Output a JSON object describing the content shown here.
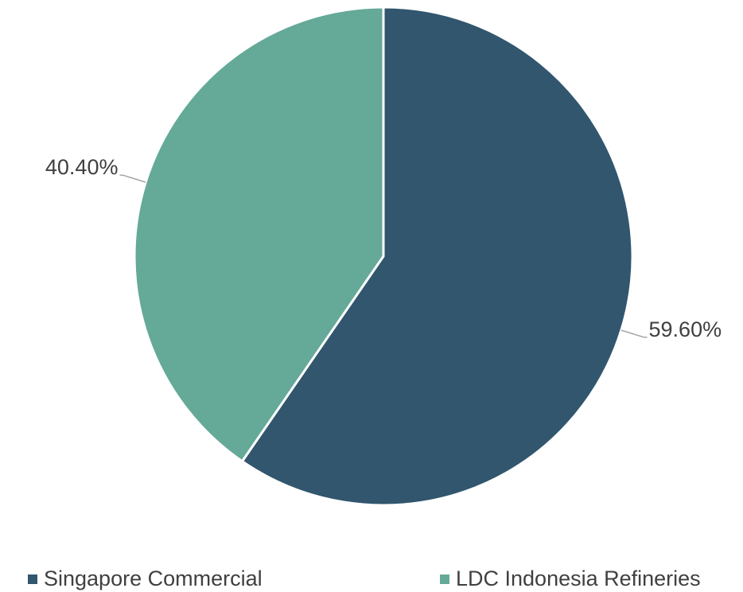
{
  "chart_data": {
    "type": "pie",
    "categories": [
      "Singapore Commercial",
      "LDC Indonesia Refineries"
    ],
    "values": [
      59.6,
      40.4
    ],
    "value_labels": [
      "59.60%",
      "40.40%"
    ],
    "colors": [
      "#31566e",
      "#65a998"
    ],
    "legend": "bottom"
  }
}
